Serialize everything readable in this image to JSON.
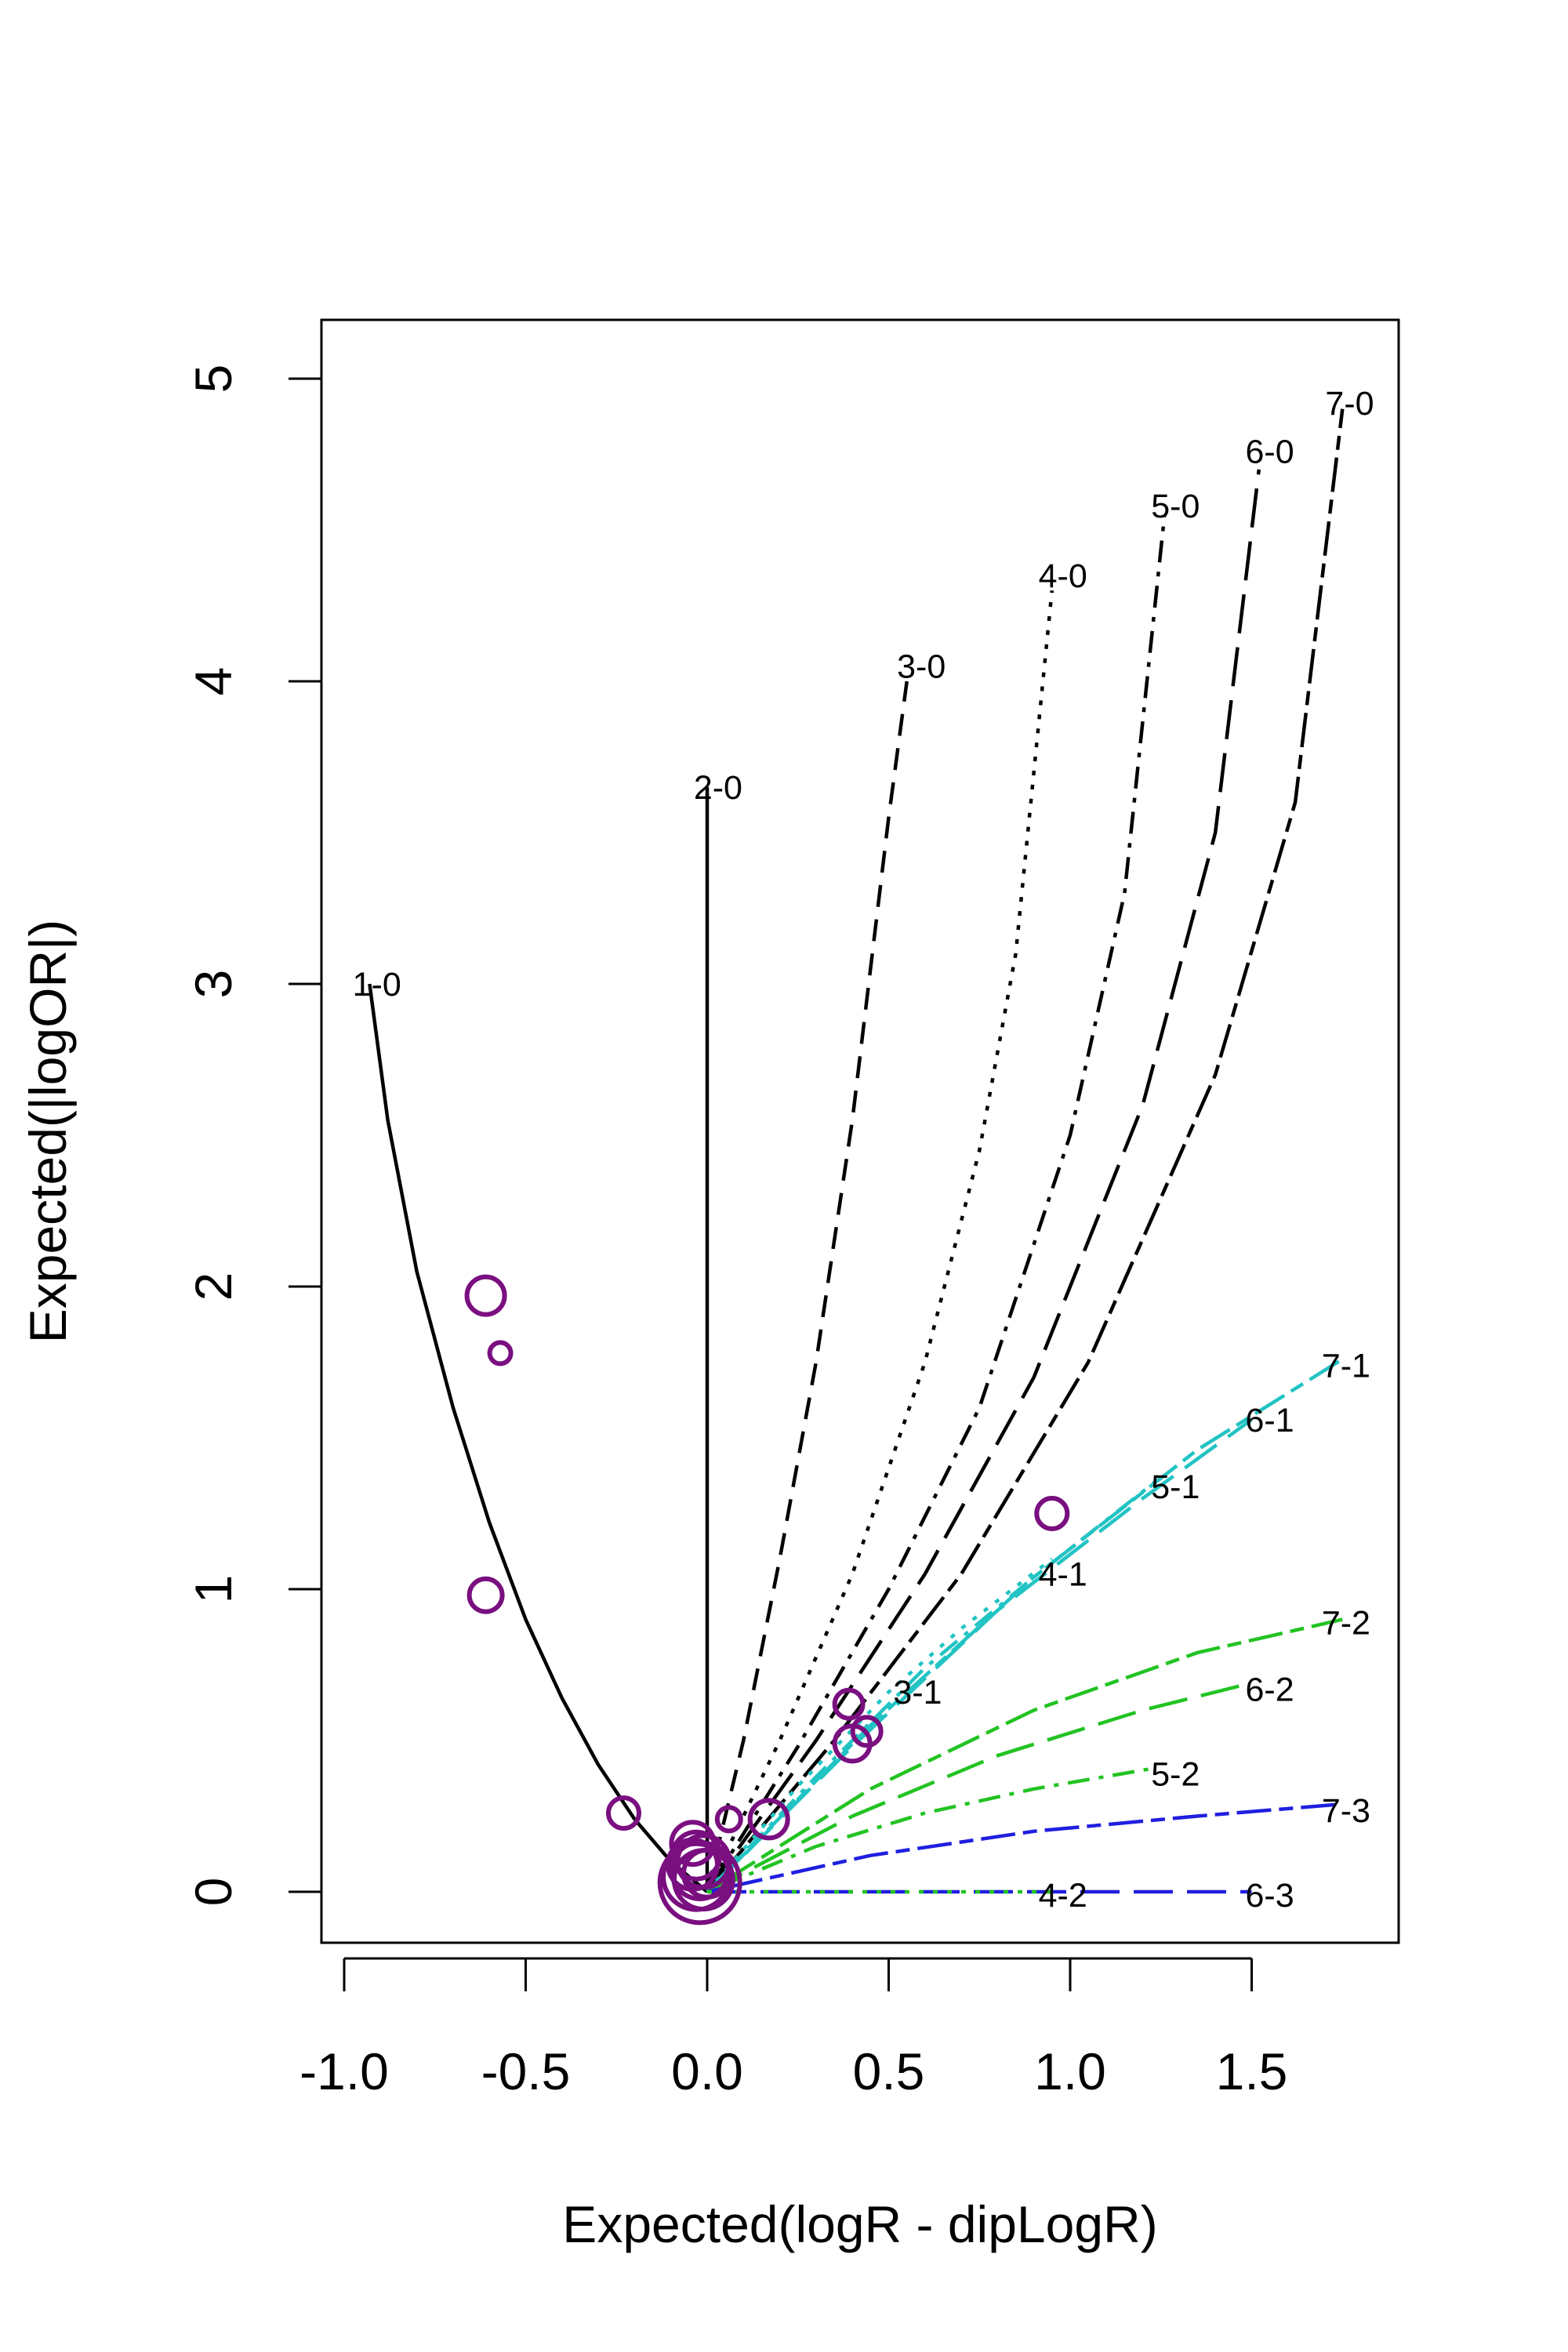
{
  "chart_data": {
    "type": "line",
    "title": "",
    "xlabel": "Expected(logR - dipLogR)",
    "ylabel": "Expected(|logOR|)",
    "xlim": [
      -1.07,
      1.87
    ],
    "ylim": [
      -0.2,
      5.2
    ],
    "x_ticks": [
      -1.0,
      -0.5,
      0.0,
      0.5,
      1.0,
      1.5
    ],
    "x_tick_labels": [
      "-1.0",
      "-0.5",
      "0.0",
      "0.5",
      "1.0",
      "1.5"
    ],
    "y_ticks": [
      0,
      1,
      2,
      3,
      4,
      5
    ],
    "y_tick_labels": [
      "0",
      "1",
      "2",
      "3",
      "4",
      "5"
    ],
    "grid": false,
    "series": [
      {
        "name": "1-0",
        "color": "#000000",
        "dash": "solid",
        "x": [
          -0.93,
          -0.88,
          -0.8,
          -0.7,
          -0.6,
          -0.5,
          -0.4,
          -0.3,
          -0.2,
          -0.1,
          0.0
        ],
        "y": [
          3.0,
          2.55,
          2.05,
          1.6,
          1.22,
          0.9,
          0.64,
          0.42,
          0.24,
          0.1,
          0.0
        ]
      },
      {
        "name": "2-0",
        "color": "#000000",
        "dash": "solid",
        "x": [
          0.0,
          0.0
        ],
        "y": [
          0.0,
          3.65
        ]
      },
      {
        "name": "3-0",
        "color": "#000000",
        "dash": "dashed",
        "x": [
          0.0,
          0.1,
          0.2,
          0.3,
          0.4,
          0.5,
          0.55
        ],
        "y": [
          0.0,
          0.5,
          1.1,
          1.75,
          2.55,
          3.55,
          4.0
        ]
      },
      {
        "name": "4-0",
        "color": "#000000",
        "dash": "dotted",
        "x": [
          0.0,
          0.2,
          0.4,
          0.6,
          0.75,
          0.85,
          0.95
        ],
        "y": [
          0.0,
          0.5,
          1.05,
          1.75,
          2.45,
          3.1,
          4.3
        ]
      },
      {
        "name": "5-0",
        "color": "#000000",
        "dash": "dotdash",
        "x": [
          0.0,
          0.25,
          0.5,
          0.75,
          1.0,
          1.15,
          1.26
        ],
        "y": [
          0.0,
          0.48,
          1.0,
          1.6,
          2.5,
          3.3,
          4.55
        ]
      },
      {
        "name": "6-0",
        "color": "#000000",
        "dash": "longdash",
        "x": [
          0.0,
          0.3,
          0.6,
          0.9,
          1.2,
          1.4,
          1.52
        ],
        "y": [
          0.0,
          0.5,
          1.05,
          1.7,
          2.6,
          3.5,
          4.7
        ]
      },
      {
        "name": "7-0",
        "color": "#000000",
        "dash": "twodash",
        "x": [
          0.0,
          0.35,
          0.7,
          1.05,
          1.4,
          1.62,
          1.75
        ],
        "y": [
          0.0,
          0.5,
          1.05,
          1.75,
          2.7,
          3.6,
          4.9
        ]
      },
      {
        "name": "4-1",
        "color": "#22c3c3",
        "dash": "dotted",
        "x": [
          0.0,
          0.25,
          0.5,
          0.7,
          0.95
        ],
        "y": [
          0.0,
          0.35,
          0.66,
          0.87,
          1.1
        ]
      },
      {
        "name": "5-1",
        "color": "#22c3c3",
        "dash": "dotdash",
        "x": [
          0.0,
          0.3,
          0.6,
          0.9,
          1.24
        ],
        "y": [
          0.0,
          0.38,
          0.74,
          1.04,
          1.36
        ]
      },
      {
        "name": "6-1",
        "color": "#22c3c3",
        "dash": "longdash",
        "x": [
          0.0,
          0.4,
          0.8,
          1.2,
          1.5
        ],
        "y": [
          0.0,
          0.48,
          0.93,
          1.3,
          1.56
        ]
      },
      {
        "name": "7-1",
        "color": "#22c3c3",
        "dash": "twodash",
        "x": [
          0.0,
          0.45,
          0.9,
          1.35,
          1.75
        ],
        "y": [
          0.0,
          0.55,
          1.04,
          1.46,
          1.76
        ]
      },
      {
        "name": "5-2",
        "color": "#22c322",
        "dash": "dotdash",
        "x": [
          0.0,
          0.3,
          0.6,
          0.9,
          1.24
        ],
        "y": [
          0.0,
          0.15,
          0.26,
          0.34,
          0.41
        ]
      },
      {
        "name": "6-2",
        "color": "#22c322",
        "dash": "longdash",
        "x": [
          0.0,
          0.4,
          0.8,
          1.2,
          1.5
        ],
        "y": [
          0.0,
          0.25,
          0.45,
          0.6,
          0.69
        ]
      },
      {
        "name": "7-2",
        "color": "#22c322",
        "dash": "twodash",
        "x": [
          0.0,
          0.45,
          0.9,
          1.35,
          1.75
        ],
        "y": [
          0.0,
          0.34,
          0.6,
          0.79,
          0.9
        ]
      },
      {
        "name": "7-3",
        "color": "#1f1fe0",
        "dash": "twodash",
        "x": [
          0.0,
          0.45,
          0.9,
          1.35,
          1.75
        ],
        "y": [
          0.0,
          0.12,
          0.2,
          0.25,
          0.29
        ]
      },
      {
        "name": "6-3",
        "color": "#1f1fe0",
        "dash": "longdash",
        "x": [
          0.0,
          1.5
        ],
        "y": [
          0.0,
          0.0
        ]
      },
      {
        "name": "4-2",
        "color": "#22c322",
        "dash": "dotted",
        "x": [
          0.0,
          0.95
        ],
        "y": [
          0.0,
          0.0
        ]
      }
    ],
    "curve_labels": [
      {
        "text": "1-0",
        "x": -0.91,
        "y": 3.0
      },
      {
        "text": "2-0",
        "x": 0.03,
        "y": 3.65
      },
      {
        "text": "3-0",
        "x": 0.59,
        "y": 4.05
      },
      {
        "text": "4-0",
        "x": 0.98,
        "y": 4.35
      },
      {
        "text": "5-0",
        "x": 1.29,
        "y": 4.58
      },
      {
        "text": "6-0",
        "x": 1.55,
        "y": 4.76
      },
      {
        "text": "7-0",
        "x": 1.77,
        "y": 4.92
      },
      {
        "text": "7-1",
        "x": 1.76,
        "y": 1.74
      },
      {
        "text": "6-1",
        "x": 1.55,
        "y": 1.56
      },
      {
        "text": "5-1",
        "x": 1.29,
        "y": 1.34
      },
      {
        "text": "4-1",
        "x": 0.98,
        "y": 1.05
      },
      {
        "text": "3-1",
        "x": 0.58,
        "y": 0.66
      },
      {
        "text": "7-2",
        "x": 1.76,
        "y": 0.89
      },
      {
        "text": "6-2",
        "x": 1.55,
        "y": 0.67
      },
      {
        "text": "5-2",
        "x": 1.29,
        "y": 0.39
      },
      {
        "text": "7-3",
        "x": 1.76,
        "y": 0.27
      },
      {
        "text": "4-2",
        "x": 0.98,
        "y": -0.01
      },
      {
        "text": "6-3",
        "x": 1.55,
        "y": -0.01
      }
    ],
    "points": {
      "color": "#7a0f80",
      "x": [
        -0.61,
        -0.57,
        -0.61,
        -0.23,
        0.06,
        0.17,
        0.39,
        0.4,
        0.44,
        0.95,
        -0.04,
        -0.03,
        -0.01,
        -0.04,
        -0.02,
        0.0,
        -0.03,
        -0.01,
        -0.02
      ],
      "y": [
        1.97,
        1.78,
        0.98,
        0.26,
        0.24,
        0.24,
        0.62,
        0.49,
        0.53,
        1.25,
        0.16,
        0.12,
        0.1,
        0.09,
        0.07,
        0.06,
        0.05,
        0.04,
        0.03
      ],
      "size": [
        1.6,
        0.9,
        1.4,
        1.3,
        1.0,
        1.6,
        1.2,
        1.5,
        1.2,
        1.3,
        1.8,
        2.0,
        2.2,
        2.1,
        2.4,
        2.0,
        2.8,
        2.5,
        3.4
      ]
    }
  }
}
